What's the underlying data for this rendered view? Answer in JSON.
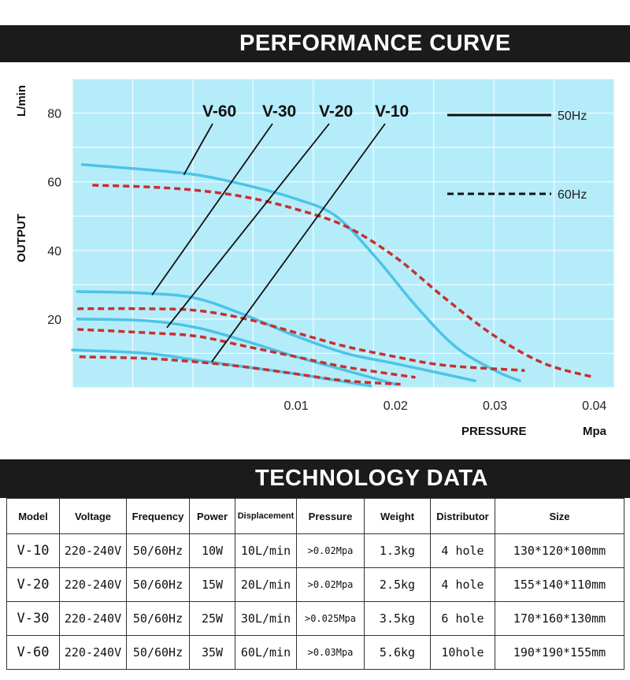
{
  "header": {
    "title": "PERFORMANCE CURVE"
  },
  "section2": {
    "title": "TECHNOLOGY DATA"
  },
  "chart_data": {
    "type": "line",
    "title": "PERFORMANCE CURVE",
    "xlabel": "PRESSURE",
    "xunit": "Mpa",
    "ylabel": "OUTPUT",
    "yunit": "L/min",
    "xlim": [
      -0.0125,
      0.042
    ],
    "ylim": [
      0,
      90
    ],
    "xticks": [
      0.01,
      0.02,
      0.03,
      0.04
    ],
    "xtick_labels": [
      "0.01",
      "0.02",
      "0.03",
      "0.04"
    ],
    "yticks": [
      20,
      40,
      60,
      80
    ],
    "ytick_labels": [
      "20",
      "40",
      "60",
      "80"
    ],
    "grid": true,
    "background": "#b5ecfa",
    "legend_position": "top-right",
    "legend": [
      {
        "label": "50Hz",
        "style": "solid"
      },
      {
        "label": "60Hz",
        "style": "dashed"
      }
    ],
    "model_labels": [
      "V-60",
      "V-30",
      "V-20",
      "V-10"
    ],
    "series": [
      {
        "name": "V-60",
        "freq": "50Hz",
        "color": "#4cc4e6",
        "x": [
          -0.0115,
          -0.005,
          0.0,
          0.005,
          0.01,
          0.014,
          0.018,
          0.022,
          0.026,
          0.03,
          0.0325
        ],
        "y": [
          65,
          63.5,
          62,
          59,
          55,
          50,
          38,
          24,
          12,
          5,
          2
        ]
      },
      {
        "name": "V-60",
        "freq": "60Hz",
        "color": "#c8302e",
        "x": [
          -0.0105,
          -0.005,
          0.0,
          0.005,
          0.01,
          0.015,
          0.02,
          0.025,
          0.03,
          0.035,
          0.04
        ],
        "y": [
          59,
          58.5,
          57.5,
          55.5,
          52,
          47,
          38,
          26,
          15,
          7,
          3
        ]
      },
      {
        "name": "V-30",
        "freq": "50Hz",
        "color": "#4cc4e6",
        "x": [
          -0.012,
          -0.005,
          0.0,
          0.005,
          0.01,
          0.015,
          0.02,
          0.028
        ],
        "y": [
          28,
          27.5,
          26,
          21,
          15,
          10,
          7,
          2
        ]
      },
      {
        "name": "V-30",
        "freq": "60Hz",
        "color": "#c8302e",
        "x": [
          -0.012,
          -0.005,
          0.0,
          0.005,
          0.01,
          0.015,
          0.02,
          0.025,
          0.033
        ],
        "y": [
          23,
          23,
          22.5,
          20,
          16,
          12,
          9,
          6.5,
          5
        ]
      },
      {
        "name": "V-20",
        "freq": "50Hz",
        "color": "#4cc4e6",
        "x": [
          -0.012,
          -0.005,
          0.0,
          0.005,
          0.01,
          0.015,
          0.02
        ],
        "y": [
          20,
          19.5,
          17.5,
          13.5,
          9,
          5,
          1
        ]
      },
      {
        "name": "V-20",
        "freq": "60Hz",
        "color": "#c8302e",
        "x": [
          -0.012,
          -0.005,
          0.0,
          0.005,
          0.01,
          0.015,
          0.022
        ],
        "y": [
          17,
          16,
          15,
          12,
          9,
          6,
          3
        ]
      },
      {
        "name": "V-10",
        "freq": "50Hz",
        "color": "#4cc4e6",
        "x": [
          -0.0125,
          -0.005,
          0.0,
          0.005,
          0.01,
          0.0175
        ],
        "y": [
          11,
          10,
          8,
          6,
          4,
          0.5
        ]
      },
      {
        "name": "V-10",
        "freq": "60Hz",
        "color": "#c8302e",
        "x": [
          -0.0118,
          -0.005,
          0.0,
          0.005,
          0.01,
          0.015,
          0.0205
        ],
        "y": [
          9,
          8.5,
          7.5,
          6,
          4,
          2,
          1
        ]
      }
    ]
  },
  "table": {
    "headers": [
      "Model",
      "Voltage",
      "Frequency",
      "Power",
      "Displacement",
      "Pressure",
      "Weight",
      "Distributor",
      "Size"
    ],
    "rows": [
      [
        "V-10",
        "220-240V",
        "50/60Hz",
        "10W",
        "10L/min",
        ">0.02Mpa",
        "1.3kg",
        "4 hole",
        "130*120*100mm"
      ],
      [
        "V-20",
        "220-240V",
        "50/60Hz",
        "15W",
        "20L/min",
        ">0.02Mpa",
        "2.5kg",
        "4 hole",
        "155*140*110mm"
      ],
      [
        "V-30",
        "220-240V",
        "50/60Hz",
        "25W",
        "30L/min",
        ">0.025Mpa",
        "3.5kg",
        "6 hole",
        "170*160*130mm"
      ],
      [
        "V-60",
        "220-240V",
        "50/60Hz",
        "35W",
        "60L/min",
        ">0.03Mpa",
        "5.6kg",
        "10hole",
        "190*190*155mm"
      ]
    ]
  }
}
